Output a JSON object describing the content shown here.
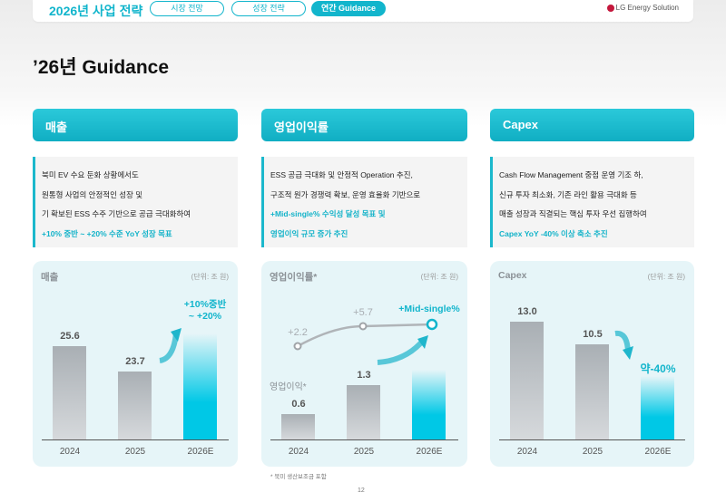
{
  "topbar": {
    "title": "2026년 사업 전략",
    "tabs": [
      {
        "label": "시장 전망"
      },
      {
        "label": "성장 전략"
      },
      {
        "label": "연간 Guidance",
        "active": true
      }
    ],
    "logo": "LG Energy Solution"
  },
  "page_title": "’26년 Guidance",
  "colors": {
    "accent": "#12b5cc",
    "bar": "#a9afb4",
    "logo": "#c4173c"
  },
  "sections": [
    {
      "header": "매출",
      "lines": [
        "북미 EV 수요 둔화 상황에서도",
        "원통형 사업의 안정적인 성장 및",
        "기 확보된 ESS 수주 기반으로 공급 극대화하여"
      ],
      "highlight": "+10% 중반 ~ +20% 수준 YoY 성장 목표"
    },
    {
      "header": "영업이익률",
      "lines": [
        "ESS 공급 극대화 및 안정적 Operation 추진,",
        "구조적 원가 경쟁력 확보, 운영 효율화 기반으로"
      ],
      "highlight_lines": [
        "+Mid-single% 수익성 달성 목표 및"
      ],
      "tail_lines": [
        "영업이익 규모 증가 추진"
      ]
    },
    {
      "header": "Capex",
      "lines": [
        "Cash Flow Management 중점 운영 기조 하,",
        "신규 투자 최소화, 기존 라인 활용 극대화 등",
        "매출 성장과 직결되는 핵심 투자 우선 집행하여"
      ],
      "highlight": "Capex YoY -40% 이상 축소 추진"
    }
  ],
  "chart_data": [
    {
      "type": "bar",
      "title": "매출",
      "unit": "(단위: 조 원)",
      "categories": [
        "2024",
        "2025",
        "2026E"
      ],
      "values": [
        25.6,
        23.7,
        null
      ],
      "labels": [
        "25.6",
        "23.7"
      ],
      "target_label": [
        "+10%중반",
        "~ +20%"
      ]
    },
    {
      "type": "bar+line",
      "title": "영업이익률*",
      "bar_label": "영업이익*",
      "unit": "(단위: 조 원)",
      "categories": [
        "2024",
        "2025",
        "2026E"
      ],
      "values": [
        0.6,
        1.3,
        null
      ],
      "labels": [
        "0.6",
        "1.3"
      ],
      "line_values": [
        2.2,
        5.7,
        null
      ],
      "line_labels": [
        "+2.2",
        "+5.7"
      ],
      "target_label": "+Mid-single%"
    },
    {
      "type": "bar",
      "title": "Capex",
      "unit": "(단위: 조 원)",
      "categories": [
        "2024",
        "2025",
        "2026E"
      ],
      "values": [
        13.0,
        10.5,
        null
      ],
      "labels": [
        "13.0",
        "10.5"
      ],
      "target_label": "약-40%"
    }
  ],
  "footnote": "* 북미 생산보조금 포함",
  "page_number": "12"
}
